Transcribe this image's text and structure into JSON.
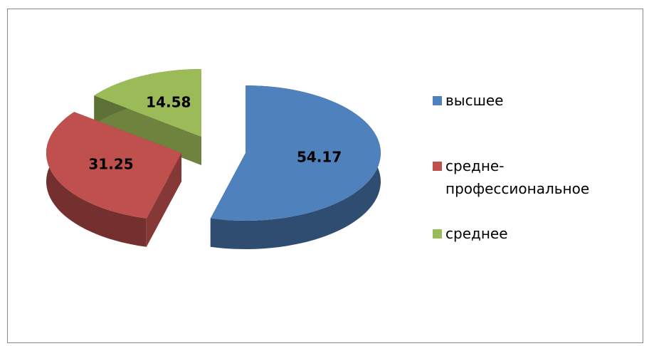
{
  "chart_data": {
    "type": "pie3d",
    "categories": [
      "высшее",
      "средне-профессиональное",
      "среднее"
    ],
    "values": [
      54.17,
      31.25,
      14.58
    ],
    "colors": [
      "#4f81bd",
      "#c0504d",
      "#9bbb59"
    ],
    "legend": "right"
  }
}
